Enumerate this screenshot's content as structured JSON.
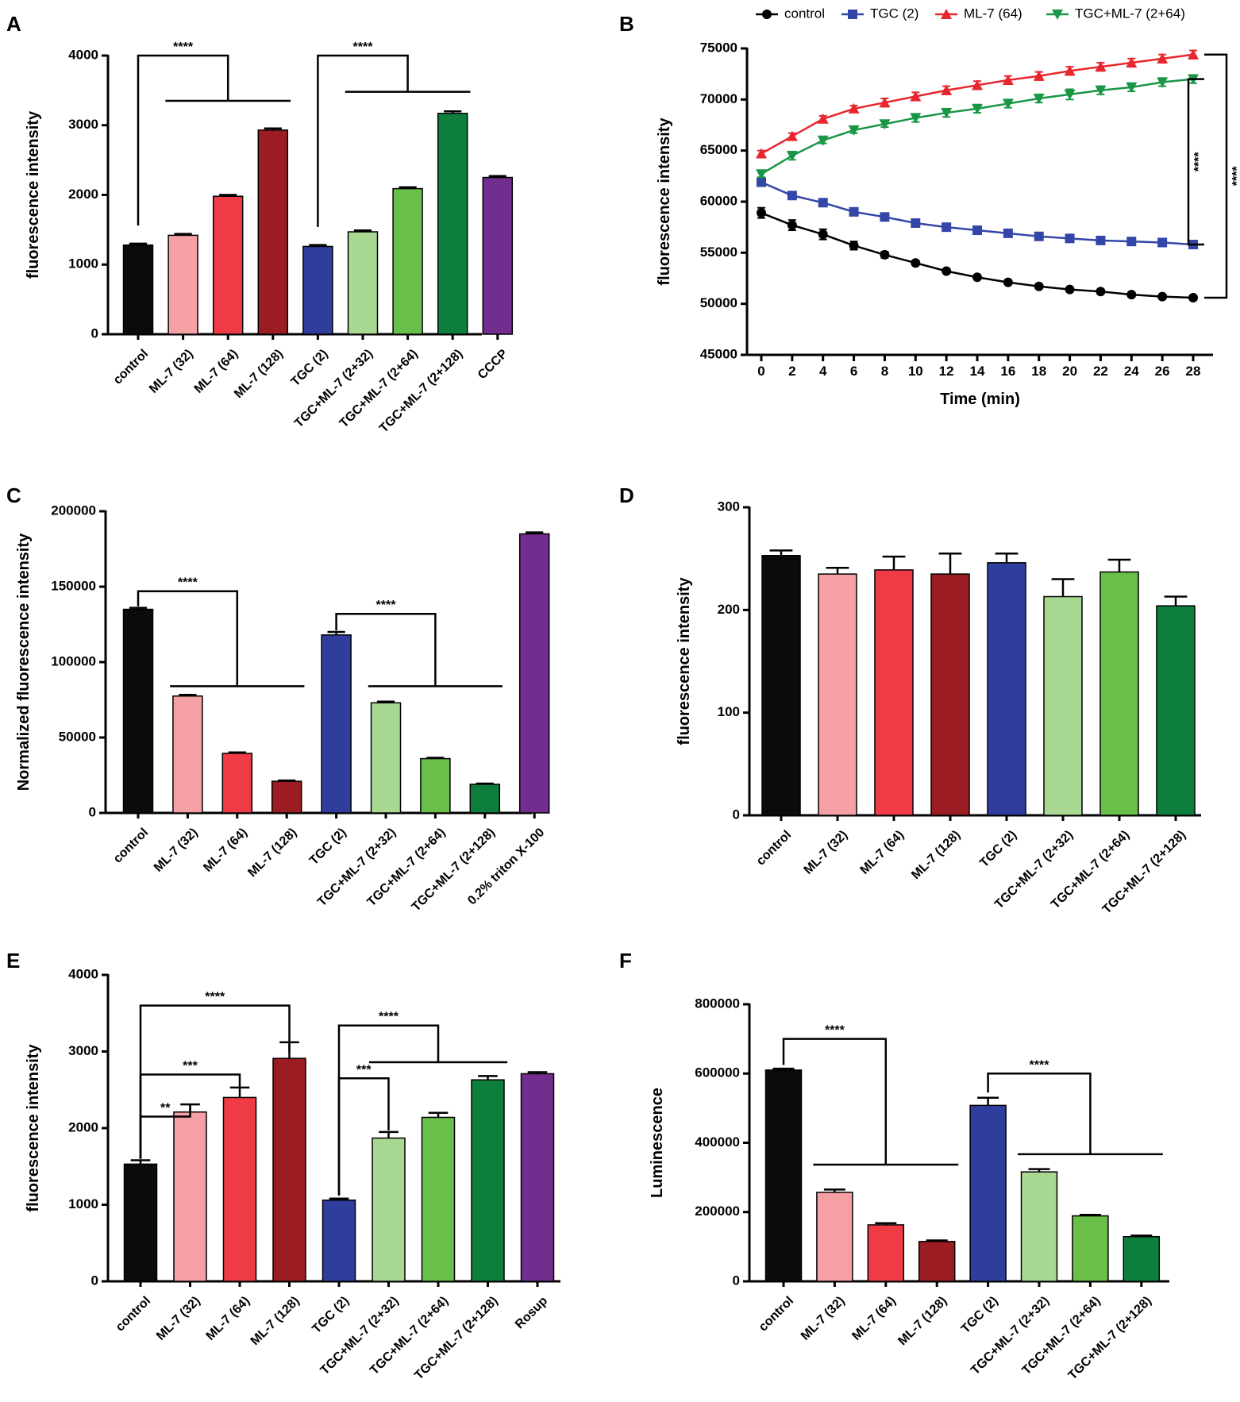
{
  "figure": {
    "colors": {
      "control": "#0a0c0c",
      "ml7_32": "#f4a0a4",
      "ml7_64": "#ef3b45",
      "ml7_128": "#9b1c22",
      "tgc_2": "#2f3e9c",
      "tgc_ml7_32": "#a8d892",
      "tgc_ml7_64": "#6abf4b",
      "tgc_ml7_128": "#0e7e3c",
      "purple": "#722e8e",
      "line_control": "#000000",
      "line_tgc": "#3346a8",
      "line_ml7": "#e8262d",
      "line_combo": "#1a9647"
    }
  },
  "chart_data": [
    {
      "panel": "A",
      "type": "bar",
      "ylabel": "fluorescence intensity",
      "ylim": [
        0,
        4000
      ],
      "yticks": [
        0,
        1000,
        2000,
        3000,
        4000
      ],
      "categories": [
        "control",
        "ML-7 (32)",
        "ML-7 (64)",
        "ML-7 (128)",
        "TGC (2)",
        "TGC+ML-7 (2+32)",
        "TGC+ML-7 (2+64)",
        "TGC+ML-7 (2+128)",
        "CCCP"
      ],
      "values": [
        1280,
        1420,
        1980,
        2930,
        1260,
        1470,
        2090,
        3170,
        2250
      ],
      "errors": [
        20,
        20,
        20,
        25,
        20,
        20,
        20,
        30,
        20
      ],
      "colors": [
        "control",
        "ml7_32",
        "ml7_64",
        "ml7_128",
        "tgc_2",
        "tgc_ml7_32",
        "tgc_ml7_64",
        "tgc_ml7_128",
        "purple"
      ],
      "annotations": [
        {
          "label": "****",
          "from": 0,
          "to": [
            1,
            3
          ],
          "level": 4000,
          "bar_level": 3350,
          "start": 1560
        },
        {
          "label": "****",
          "from": 4,
          "to": [
            5,
            7
          ],
          "level": 4000,
          "bar_level": 3480,
          "start": 1540
        }
      ]
    },
    {
      "panel": "B",
      "type": "line",
      "xlabel": "Time (min)",
      "ylabel": "fluorescence intensity",
      "xlim": [
        0,
        28
      ],
      "ylim": [
        45000,
        75000
      ],
      "yticks": [
        45000,
        50000,
        55000,
        60000,
        65000,
        70000,
        75000
      ],
      "x": [
        0,
        2,
        4,
        6,
        8,
        10,
        12,
        14,
        16,
        18,
        20,
        22,
        24,
        26,
        28
      ],
      "series": [
        {
          "name": "control",
          "marker": "circle",
          "color": "line_control",
          "values": [
            58900,
            57700,
            56800,
            55700,
            54800,
            54000,
            53200,
            52600,
            52100,
            51700,
            51400,
            51200,
            50900,
            50700,
            50600
          ],
          "errors": [
            500,
            500,
            500,
            400,
            300,
            200,
            200,
            200,
            200,
            200,
            200,
            200,
            200,
            200,
            200
          ]
        },
        {
          "name": "TGC (2)",
          "marker": "square",
          "color": "line_tgc",
          "values": [
            61900,
            60600,
            59900,
            59000,
            58500,
            57900,
            57500,
            57200,
            56900,
            56600,
            56400,
            56200,
            56100,
            56000,
            55800
          ],
          "errors": [
            300,
            200,
            200,
            200,
            200,
            200,
            200,
            200,
            200,
            200,
            200,
            200,
            200,
            200,
            200
          ]
        },
        {
          "name": "ML-7 (64)",
          "marker": "triangle-up",
          "color": "line_ml7",
          "values": [
            64700,
            66400,
            68100,
            69100,
            69700,
            70300,
            70900,
            71400,
            71900,
            72300,
            72800,
            73200,
            73600,
            74000,
            74400
          ],
          "errors": [
            300,
            300,
            300,
            300,
            400,
            400,
            400,
            400,
            400,
            400,
            400,
            400,
            400,
            400,
            400
          ]
        },
        {
          "name": "TGC+ML-7 (2+64)",
          "marker": "triangle-down",
          "color": "line_combo",
          "values": [
            62700,
            64500,
            66000,
            67000,
            67600,
            68200,
            68700,
            69100,
            69600,
            70100,
            70500,
            70900,
            71200,
            71700,
            72000
          ],
          "errors": [
            300,
            400,
            300,
            300,
            300,
            400,
            400,
            400,
            400,
            400,
            500,
            400,
            400,
            400,
            400
          ]
        }
      ],
      "annotations": [
        {
          "label": "****",
          "between": [
            "TGC+ML-7 (2+64)",
            "TGC (2)"
          ]
        },
        {
          "label": "****",
          "between": [
            "ML-7 (64)",
            "control"
          ]
        }
      ]
    },
    {
      "panel": "C",
      "type": "bar",
      "ylabel": "Normalized fluorescence intensity",
      "ylim": [
        0,
        200000
      ],
      "yticks": [
        0,
        50000,
        100000,
        150000,
        200000
      ],
      "categories": [
        "control",
        "ML-7 (32)",
        "ML-7 (64)",
        "ML-7 (128)",
        "TGC (2)",
        "TGC+ML-7 (2+32)",
        "TGC+ML-7 (2+64)",
        "TGC+ML-7 (2+128)",
        "0.2% triton X-100"
      ],
      "values": [
        135000,
        77500,
        39500,
        21000,
        118000,
        73000,
        36000,
        19000,
        185000
      ],
      "errors": [
        1000,
        800,
        600,
        500,
        2000,
        800,
        600,
        500,
        1000
      ],
      "colors": [
        "control",
        "ml7_32",
        "ml7_64",
        "ml7_128",
        "tgc_2",
        "tgc_ml7_32",
        "tgc_ml7_64",
        "tgc_ml7_128",
        "purple"
      ],
      "annotations": [
        {
          "label": "****",
          "from": 0,
          "to": [
            1,
            3
          ],
          "level": 147000,
          "bar_level": 84000,
          "start": 137000
        },
        {
          "label": "****",
          "from": 4,
          "to": [
            5,
            7
          ],
          "level": 132000,
          "bar_level": 84000,
          "start": 121000
        }
      ]
    },
    {
      "panel": "D",
      "type": "bar",
      "ylabel": "fluorescence intensity",
      "ylim": [
        0,
        300
      ],
      "yticks": [
        0,
        100,
        200,
        300
      ],
      "categories": [
        "control",
        "ML-7 (32)",
        "ML-7 (64)",
        "ML-7 (128)",
        "TGC (2)",
        "TGC+ML-7 (2+32)",
        "TGC+ML-7 (2+64)",
        "TGC+ML-7 (2+128)"
      ],
      "values": [
        253,
        235,
        239,
        235,
        246,
        213,
        237,
        204
      ],
      "errors": [
        5,
        6,
        13,
        20,
        9,
        17,
        12,
        9
      ],
      "colors": [
        "control",
        "ml7_32",
        "ml7_64",
        "ml7_128",
        "tgc_2",
        "tgc_ml7_32",
        "tgc_ml7_64",
        "tgc_ml7_128"
      ],
      "annotations": []
    },
    {
      "panel": "E",
      "type": "bar",
      "ylabel": "fluorescence intensity",
      "ylim": [
        0,
        4000
      ],
      "yticks": [
        0,
        1000,
        2000,
        3000,
        4000
      ],
      "categories": [
        "control",
        "ML-7 (32)",
        "ML-7 (64)",
        "ML-7 (128)",
        "TGC (2)",
        "TGC+ML-7 (2+32)",
        "TGC+ML-7 (2+64)",
        "TGC+ML-7 (2+128)",
        "Rosup"
      ],
      "values": [
        1530,
        2210,
        2400,
        2910,
        1060,
        1870,
        2140,
        2630,
        2710
      ],
      "errors": [
        50,
        100,
        130,
        210,
        20,
        80,
        60,
        50,
        20
      ],
      "colors": [
        "control",
        "ml7_32",
        "ml7_64",
        "ml7_128",
        "tgc_2",
        "tgc_ml7_32",
        "tgc_ml7_64",
        "tgc_ml7_128",
        "purple"
      ],
      "annotations": [
        {
          "label": "****",
          "from": 0,
          "to": [
            3,
            3
          ],
          "level": 3600,
          "start": 1600,
          "end": 3000
        },
        {
          "label": "***",
          "from": 0,
          "to": [
            2,
            2
          ],
          "level": 2700,
          "start": 1600,
          "end": 2520
        },
        {
          "label": "**",
          "from": 0,
          "to": [
            1,
            1
          ],
          "level": 2150,
          "start": 1600,
          "end": 2300
        },
        {
          "label": "****",
          "from": 4,
          "to": [
            5,
            7
          ],
          "level": 3340,
          "bar_level": 2860,
          "start": 1120
        },
        {
          "label": "***",
          "from": 4,
          "to": [
            5,
            5
          ],
          "level": 2650,
          "start": 1120,
          "end": 1970
        }
      ]
    },
    {
      "panel": "F",
      "type": "bar",
      "ylabel": "Luminescence",
      "ylim": [
        0,
        800000
      ],
      "yticks": [
        0,
        200000,
        400000,
        600000,
        800000
      ],
      "categories": [
        "control",
        "ML-7 (32)",
        "ML-7 (64)",
        "ML-7 (128)",
        "TGC (2)",
        "TGC+ML-7 (2+32)",
        "TGC+ML-7 (2+64)",
        "TGC+ML-7 (2+128)"
      ],
      "values": [
        610000,
        257000,
        163000,
        115000,
        508000,
        316000,
        189000,
        129000
      ],
      "errors": [
        4000,
        8000,
        5000,
        3000,
        22000,
        8000,
        3000,
        3000
      ],
      "colors": [
        "control",
        "ml7_32",
        "ml7_64",
        "ml7_128",
        "tgc_2",
        "tgc_ml7_32",
        "tgc_ml7_64",
        "tgc_ml7_128"
      ],
      "annotations": [
        {
          "label": "****",
          "from": 0,
          "to": [
            1,
            3
          ],
          "level": 700000,
          "bar_level": 337000,
          "start": 625000
        },
        {
          "label": "****",
          "from": 4,
          "to": [
            5,
            7
          ],
          "level": 600000,
          "bar_level": 367000,
          "start": 545000
        }
      ]
    }
  ]
}
